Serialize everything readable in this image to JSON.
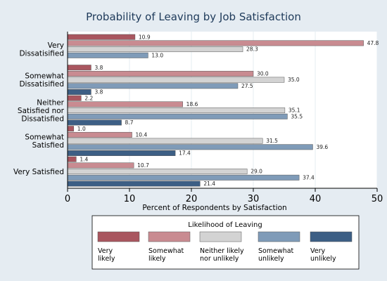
{
  "chart_data": {
    "type": "bar",
    "orientation": "horizontal",
    "title": "Probability of Leaving by Job Satisfaction",
    "xlabel": "Percent of Respondents by Satisfaction",
    "ylabel": "",
    "xlim": [
      0,
      50
    ],
    "xticks": [
      0,
      10,
      20,
      30,
      40,
      50
    ],
    "grid": "vertical",
    "legend_position": "bottom",
    "legend_title": "Likelihood of Leaving",
    "categories": [
      [
        "Very",
        "Dissatisified"
      ],
      [
        "Somewhat",
        "Dissatisified"
      ],
      [
        "Neither",
        "Satisfied nor",
        "Dissatisfied"
      ],
      [
        "Somewhat",
        "Satisfied"
      ],
      [
        "Very Satisfied"
      ]
    ],
    "series": [
      {
        "name": [
          "Very",
          "likely"
        ],
        "color": "#a9565f",
        "values": [
          10.9,
          3.8,
          2.2,
          1.0,
          1.4
        ]
      },
      {
        "name": [
          "Somewhat",
          "likely"
        ],
        "color": "#c98b91",
        "values": [
          47.8,
          30.0,
          18.6,
          10.4,
          10.7
        ]
      },
      {
        "name": [
          "Neither likely",
          "nor unlikely"
        ],
        "color": "#d3d3d3",
        "values": [
          28.3,
          35.0,
          35.1,
          31.5,
          29.0
        ]
      },
      {
        "name": [
          "Somewhat",
          "unlikely"
        ],
        "color": "#7f9bb8",
        "values": [
          13.0,
          27.5,
          35.5,
          39.6,
          37.4
        ]
      },
      {
        "name": [
          "Very",
          "unlikely"
        ],
        "color": "#3d5f85",
        "values": [
          null,
          3.8,
          8.7,
          17.4,
          21.4
        ]
      }
    ],
    "colors": {
      "background": "#e5ecf2",
      "plot_area": "#ffffff",
      "grid": "#e5ecf2",
      "axis": "#000000",
      "title": "#1e3a5a"
    }
  }
}
